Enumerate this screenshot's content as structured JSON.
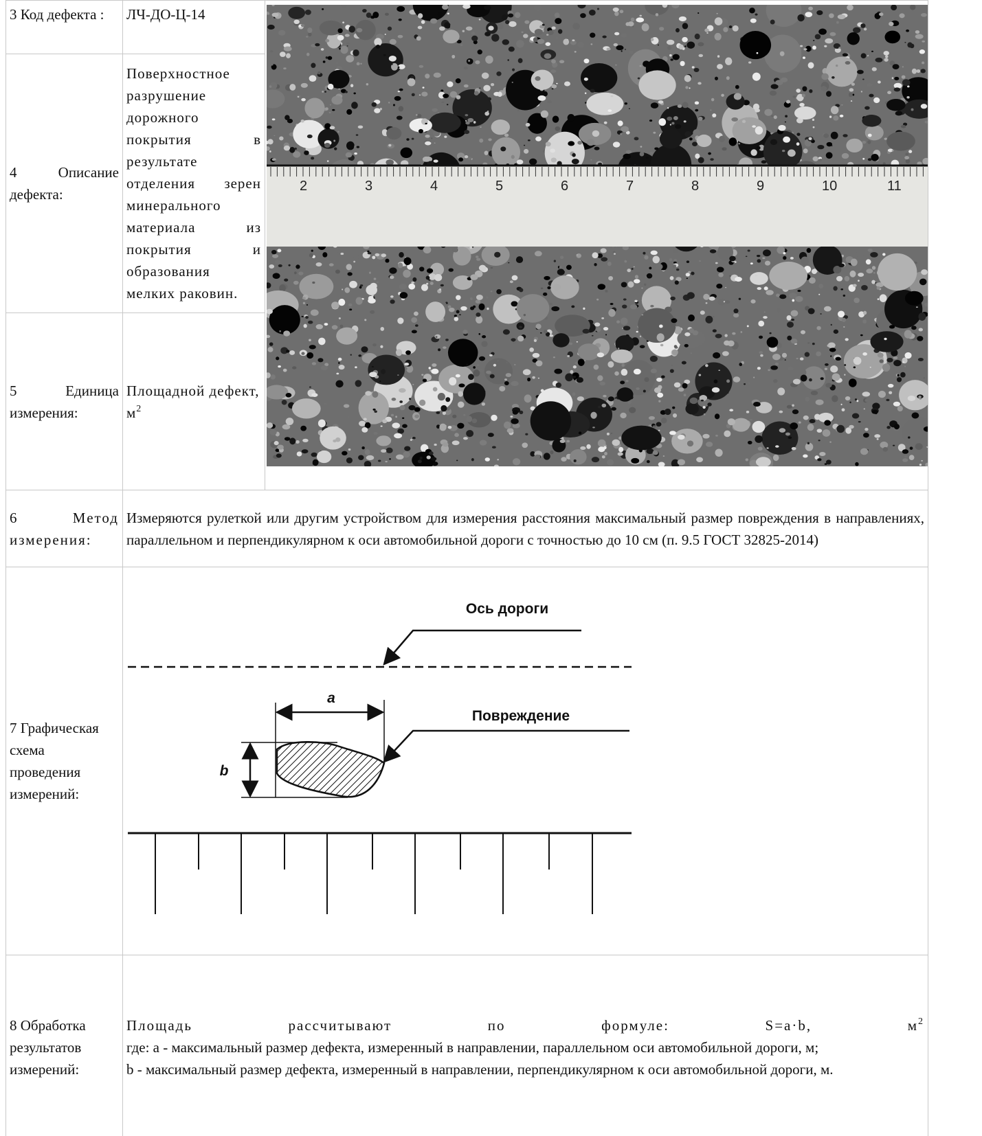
{
  "rows": [
    {
      "label": "3 Код дефекта :",
      "value": "ЛЧ-ДО-Ц-14"
    },
    {
      "label": "4 Описание дефекта:",
      "value": "Поверхностное разрушение дорожного покрытия в результате отделения зерен минерального материала из покрытия и образования мелких раковин."
    },
    {
      "label": "5 Единица измерения:",
      "value": "Площадной дефект, м",
      "value_sup": "2"
    },
    {
      "label": "6 Метод измерения:",
      "value": "Измеряются рулеткой или другим устройством для измерения расстояния максимальный размер повреждения в направлениях, параллельном и перпендикулярном к оси автомобильной дороги с точностью до 10 см (п. 9.5 ГОСТ 32825-2014)"
    },
    {
      "label": "7 Графическая схема проведения измерений:",
      "diagram": {
        "axis_label": "Ось дороги",
        "damage_label": "Повреждение",
        "a": "a",
        "b": "b"
      }
    },
    {
      "label": "8 Обработка результатов измерений:",
      "formula": "Площадь рассчитывают по формуле: S=a·b, м",
      "formula_sup": "2",
      "lines": [
        "где: a - максимальный размер дефекта, измеренный в направлении, параллельном оси автомобильной дороги, м;",
        "b - максимальный размер дефекта, измеренный в направлении, перпендикулярном к оси автомобильной дороги, м."
      ]
    }
  ],
  "photo": {
    "ruler_numbers": [
      "2",
      "3",
      "4",
      "5",
      "6",
      "7",
      "8",
      "9",
      "10",
      "11"
    ]
  }
}
